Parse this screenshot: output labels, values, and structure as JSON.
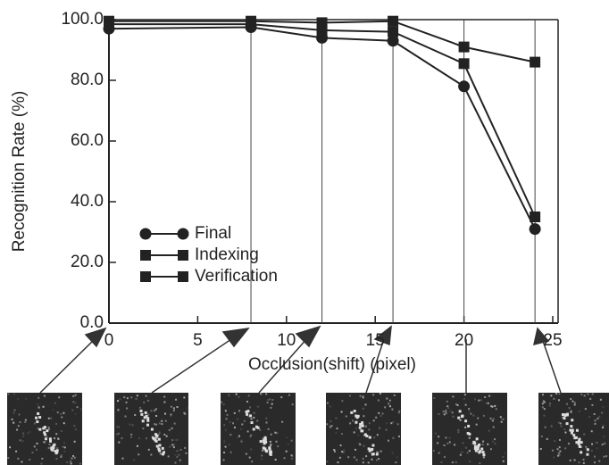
{
  "chart_data": {
    "type": "line",
    "x": [
      0,
      8,
      12,
      16,
      20,
      24
    ],
    "xlabel": "Occlusion(shift)  (pixel)",
    "ylabel": "Recognition Rate (%)",
    "xlim": [
      0,
      25
    ],
    "xticks": [
      0,
      5,
      10,
      15,
      20,
      25
    ],
    "ylim": [
      0,
      100
    ],
    "yticks": [
      {
        "value": 0,
        "label": "0.0"
      },
      {
        "value": 20,
        "label": "20.0"
      },
      {
        "value": 40,
        "label": "40.0"
      },
      {
        "value": 60,
        "label": "60.0"
      },
      {
        "value": 80,
        "label": "80.0"
      },
      {
        "value": 100,
        "label": "100.0"
      }
    ],
    "series": [
      {
        "name": "Final",
        "color": "#222222",
        "marker": "circle",
        "values": [
          97,
          97.5,
          94,
          93,
          78,
          31
        ]
      },
      {
        "name": "Indexing",
        "color": "#222222",
        "marker": "square",
        "values": [
          99.5,
          99.5,
          99,
          99.5,
          91,
          86
        ]
      },
      {
        "name": "Verification",
        "color": "#222222",
        "marker": "square",
        "values": [
          98.5,
          98.5,
          96.5,
          96,
          85.5,
          35
        ]
      }
    ]
  }
}
